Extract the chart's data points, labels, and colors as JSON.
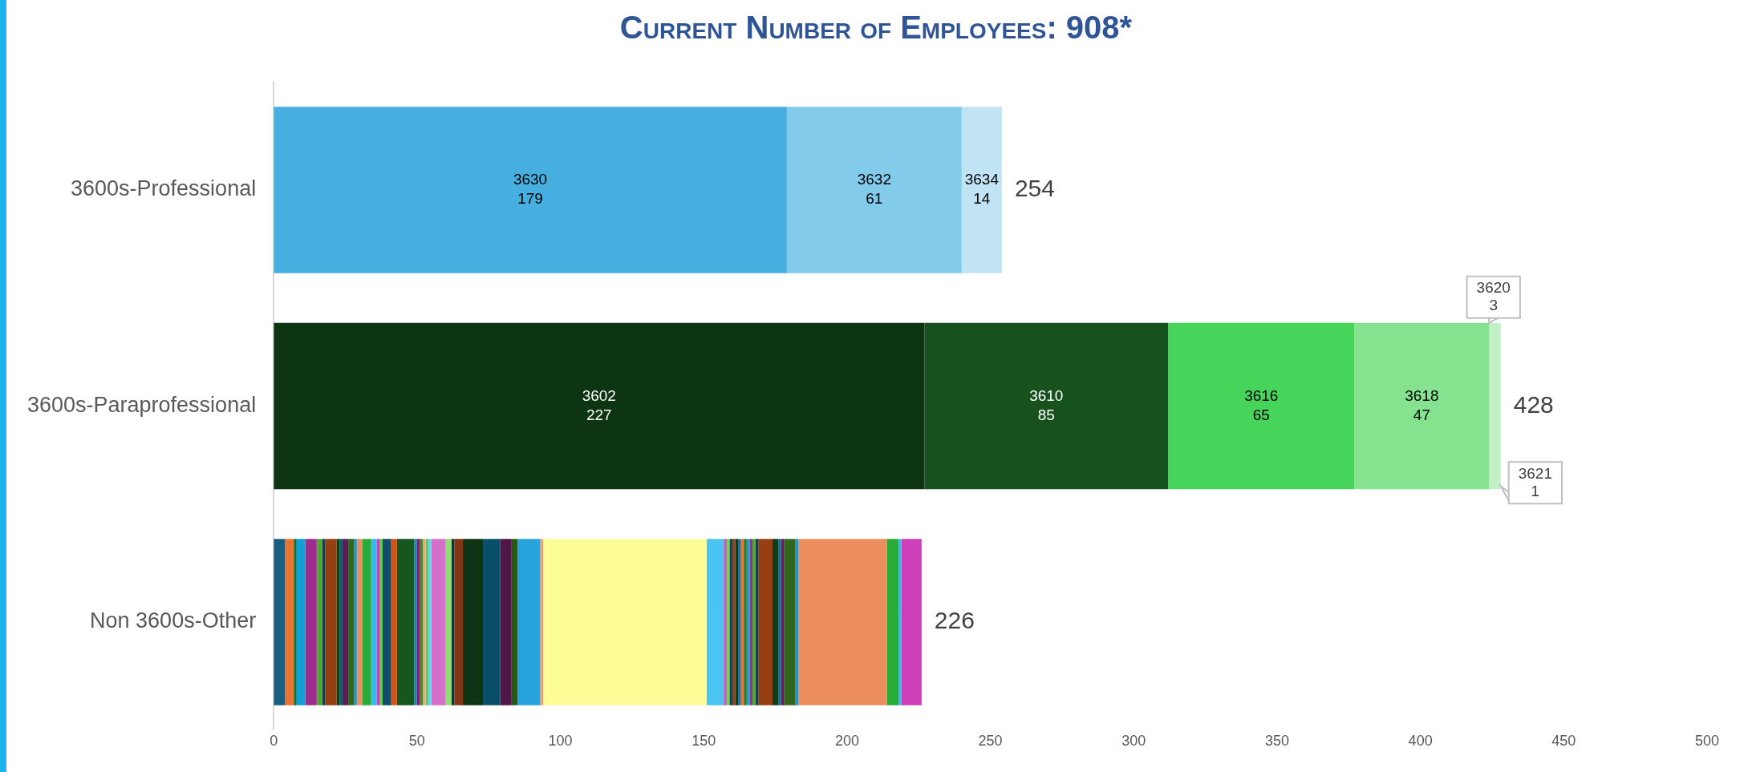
{
  "chart_data": {
    "type": "bar",
    "title": "Current Number of Employees: 908*",
    "orientation": "horizontal",
    "stacked": true,
    "grid": false,
    "legend": false,
    "categories": [
      "3600s-Professional",
      "3600s-Paraprofessional",
      "Non 3600s-Other"
    ],
    "xlim": [
      0,
      500
    ],
    "xticks": [
      0,
      50,
      100,
      150,
      200,
      250,
      300,
      350,
      400,
      450,
      500
    ],
    "totals": [
      "254",
      "428",
      "226"
    ],
    "series": [
      {
        "name": "3630",
        "color": "#47aee0",
        "values": [
          179,
          null,
          null
        ],
        "value_labels": [
          "179",
          null,
          null
        ]
      },
      {
        "name": "3632",
        "color": "#83cbeb",
        "values": [
          61,
          null,
          null
        ],
        "value_labels": [
          "61",
          null,
          null
        ]
      },
      {
        "name": "3634",
        "color": "#c1e4f5",
        "values": [
          14,
          null,
          null
        ],
        "value_labels": [
          "14",
          null,
          null
        ]
      },
      {
        "name": "3602",
        "color": "#0d3512",
        "values": [
          null,
          227,
          null
        ],
        "value_labels": [
          null,
          "227",
          null
        ]
      },
      {
        "name": "3610",
        "color": "#17521e",
        "values": [
          null,
          85,
          null
        ],
        "value_labels": [
          null,
          "85",
          null
        ]
      },
      {
        "name": "3616",
        "color": "#47d45a",
        "values": [
          null,
          65,
          null
        ],
        "value_labels": [
          null,
          "65",
          null
        ]
      },
      {
        "name": "3618",
        "color": "#85e28f",
        "values": [
          null,
          47,
          null
        ],
        "value_labels": [
          null,
          "47",
          null
        ]
      },
      {
        "name": "3620",
        "color": "#c1f0c6",
        "values": [
          null,
          3,
          null
        ],
        "value_labels": [
          null,
          "3",
          null
        ]
      },
      {
        "name": "3621",
        "color": "#c1f0c6",
        "values": [
          null,
          1,
          null
        ],
        "value_labels": [
          null,
          "1",
          null
        ]
      },
      {
        "color": "#1a5f80",
        "values": [
          null,
          null,
          4
        ]
      },
      {
        "color": "#e97432",
        "values": [
          null,
          null,
          3
        ]
      },
      {
        "color": "#1d6e2c",
        "values": [
          null,
          null,
          1
        ]
      },
      {
        "color": "#109fd6",
        "values": [
          null,
          null,
          3
        ]
      },
      {
        "color": "#9e2b8e",
        "values": [
          null,
          null,
          4
        ]
      },
      {
        "color": "#4ea72e",
        "values": [
          null,
          null,
          2
        ]
      },
      {
        "color": "#133e52",
        "values": [
          null,
          null,
          1
        ]
      },
      {
        "color": "#963f10",
        "values": [
          null,
          null,
          4
        ]
      },
      {
        "color": "#0e3d17",
        "values": [
          null,
          null,
          1
        ]
      },
      {
        "color": "#0f5a6b",
        "values": [
          null,
          null,
          1
        ]
      },
      {
        "color": "#5f1c5a",
        "values": [
          null,
          null,
          2
        ]
      },
      {
        "color": "#32661c",
        "values": [
          null,
          null,
          2
        ]
      },
      {
        "color": "#2591c2",
        "values": [
          null,
          null,
          1
        ]
      },
      {
        "color": "#ed8e5e",
        "values": [
          null,
          null,
          2
        ]
      },
      {
        "color": "#29ab3a",
        "values": [
          null,
          null,
          3
        ]
      },
      {
        "color": "#31bbee",
        "values": [
          null,
          null,
          2
        ]
      },
      {
        "color": "#cc3fb9",
        "values": [
          null,
          null,
          1
        ]
      },
      {
        "color": "#5cc94d",
        "values": [
          null,
          null,
          1
        ]
      },
      {
        "color": "#124c6a",
        "values": [
          null,
          null,
          3
        ]
      },
      {
        "color": "#cd5517",
        "values": [
          null,
          null,
          2
        ]
      },
      {
        "color": "#16561f",
        "values": [
          null,
          null,
          6
        ]
      },
      {
        "color": "#1389b3",
        "values": [
          null,
          null,
          1
        ]
      },
      {
        "color": "#7e1f74",
        "values": [
          null,
          null,
          1
        ]
      },
      {
        "color": "#478a2d",
        "values": [
          null,
          null,
          1
        ]
      },
      {
        "color": "#f3a27a",
        "values": [
          null,
          null,
          1
        ]
      },
      {
        "color": "#4bd85a",
        "values": [
          null,
          null,
          1
        ]
      },
      {
        "color": "#60d2f2",
        "values": [
          null,
          null,
          1
        ]
      },
      {
        "color": "#d66fc9",
        "values": [
          null,
          null,
          5
        ]
      },
      {
        "color": "#90dc72",
        "values": [
          null,
          null,
          2
        ]
      },
      {
        "color": "#0e3040",
        "values": [
          null,
          null,
          1
        ]
      },
      {
        "color": "#833611",
        "values": [
          null,
          null,
          3
        ]
      },
      {
        "color": "#0e3413",
        "values": [
          null,
          null,
          7
        ]
      },
      {
        "color": "#0a4f69",
        "values": [
          null,
          null,
          6
        ]
      },
      {
        "color": "#511648",
        "values": [
          null,
          null,
          4
        ]
      },
      {
        "color": "#2b5418",
        "values": [
          null,
          null,
          2
        ]
      },
      {
        "color": "#28a4dc",
        "values": [
          null,
          null,
          8
        ]
      },
      {
        "color": "#f2a273",
        "values": [
          null,
          null,
          1
        ]
      },
      {
        "color": "#fdfd98",
        "values": [
          null,
          null,
          57
        ]
      },
      {
        "color": "#4bc4f2",
        "values": [
          null,
          null,
          6
        ]
      },
      {
        "color": "#d04fc4",
        "values": [
          null,
          null,
          1
        ]
      },
      {
        "color": "#76cc58",
        "values": [
          null,
          null,
          1
        ]
      },
      {
        "color": "#1d3f55",
        "values": [
          null,
          null,
          1
        ]
      },
      {
        "color": "#964010",
        "values": [
          null,
          null,
          1
        ]
      },
      {
        "color": "#0e3d17",
        "values": [
          null,
          null,
          1
        ]
      },
      {
        "color": "#1570a0",
        "values": [
          null,
          null,
          1
        ]
      },
      {
        "color": "#e97432",
        "values": [
          null,
          null,
          1
        ]
      },
      {
        "color": "#1d7a35",
        "values": [
          null,
          null,
          1
        ]
      },
      {
        "color": "#109fd6",
        "values": [
          null,
          null,
          1
        ]
      },
      {
        "color": "#9e2b8e",
        "values": [
          null,
          null,
          1
        ]
      },
      {
        "color": "#4ea72e",
        "values": [
          null,
          null,
          1
        ]
      },
      {
        "color": "#133e52",
        "values": [
          null,
          null,
          1
        ]
      },
      {
        "color": "#963f10",
        "values": [
          null,
          null,
          5
        ]
      },
      {
        "color": "#0e3d17",
        "values": [
          null,
          null,
          2
        ]
      },
      {
        "color": "#0f6f86",
        "values": [
          null,
          null,
          1
        ]
      },
      {
        "color": "#5f1c5a",
        "values": [
          null,
          null,
          1
        ]
      },
      {
        "color": "#32661c",
        "values": [
          null,
          null,
          4
        ]
      },
      {
        "color": "#2591c2",
        "values": [
          null,
          null,
          1
        ]
      },
      {
        "color": "#ed8e5e",
        "values": [
          null,
          null,
          31
        ]
      },
      {
        "color": "#29ab3a",
        "values": [
          null,
          null,
          4
        ]
      },
      {
        "color": "#31bbee",
        "values": [
          null,
          null,
          1
        ]
      },
      {
        "color": "#cc3fb9",
        "values": [
          null,
          null,
          7
        ]
      }
    ]
  }
}
